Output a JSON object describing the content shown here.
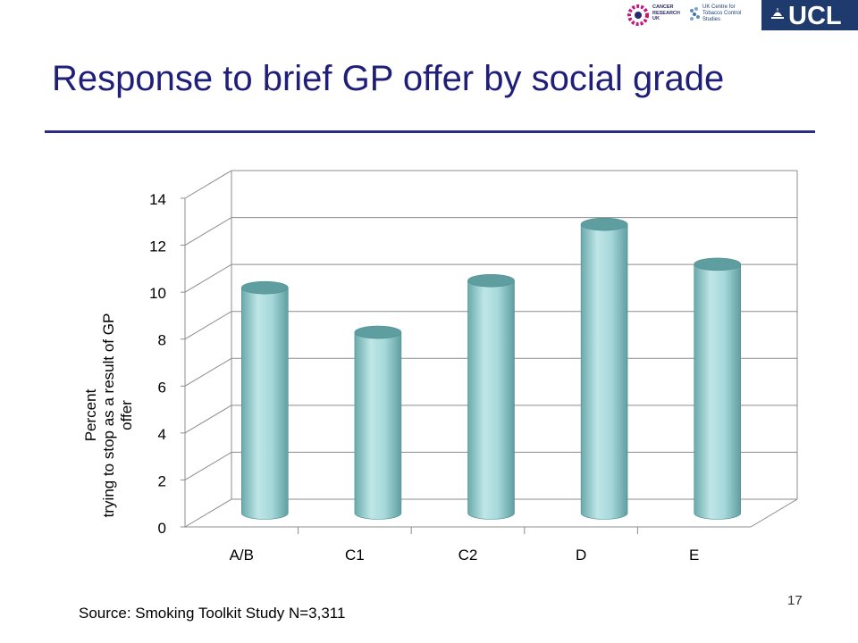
{
  "slide": {
    "title": "Response to brief GP offer by social grade",
    "source": "Source: Smoking Toolkit Study N=3,311",
    "page_number": "17"
  },
  "logos": {
    "cancer_research": "CANCER\nRESEARCH\nUK",
    "tobacco_centre": "UK Centre for\nTobacco Control Studies",
    "ucl": "UCL"
  },
  "colors": {
    "title": "#1f1f7a",
    "bar": "#9fd4d6",
    "bar_dark": "#5f9ea0",
    "grid": "#8c8c8c"
  },
  "chart_data": {
    "type": "bar",
    "categories": [
      "A/B",
      "C1",
      "C2",
      "D",
      "E"
    ],
    "values": [
      9.6,
      7.7,
      9.9,
      12.3,
      10.6
    ],
    "ylabel": "Percent\ntrying to stop as a result of GP\noffer",
    "xlabel": "",
    "ylim": [
      0,
      14
    ],
    "yticks": [
      0,
      2,
      4,
      6,
      8,
      10,
      12,
      14
    ],
    "grid": true,
    "style": "3d-cylinder"
  }
}
